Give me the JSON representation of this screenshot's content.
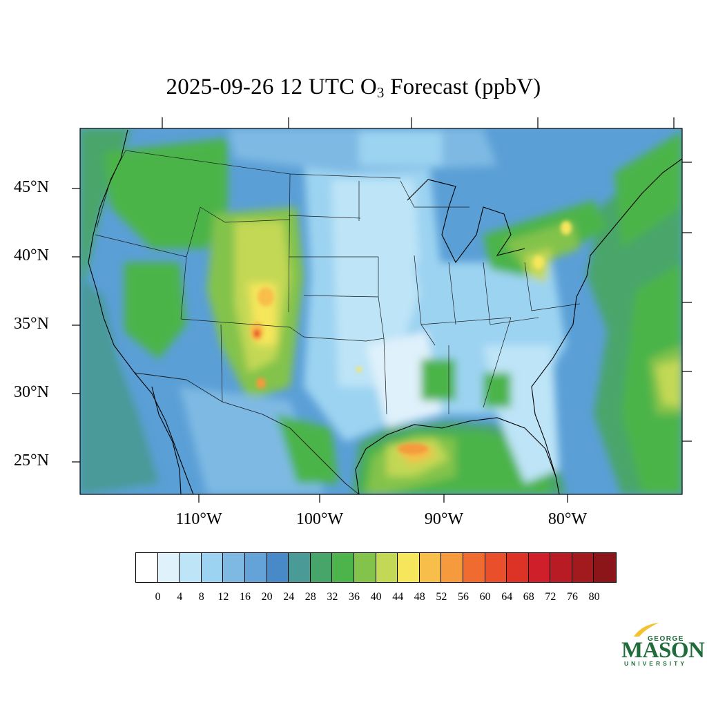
{
  "title": {
    "prefix": "2025-09-26 12 UTC O",
    "subscript": "3",
    "suffix": " Forecast (ppbV)"
  },
  "map": {
    "region": "Contiguous United States",
    "variable": "O3 forecast",
    "units": "ppbV",
    "lat_labels": [
      "45°N",
      "40°N",
      "35°N",
      "30°N",
      "25°N"
    ],
    "lon_labels": [
      "110°W",
      "100°W",
      "90°W",
      "80°W"
    ]
  },
  "colorbar": {
    "colors": [
      "#ffffff",
      "#dff1fb",
      "#bde4f7",
      "#9cd3f1",
      "#7eb9e3",
      "#64a3d7",
      "#4889c8",
      "#4a9a98",
      "#48a56a",
      "#4cb44a",
      "#83c34c",
      "#c3d854",
      "#f6e65c",
      "#f8be4a",
      "#f59a3d",
      "#f06b30",
      "#e94f2b",
      "#dd3327",
      "#cf1f2a",
      "#b91b24",
      "#a31a1e",
      "#8c1519"
    ],
    "tick_labels": [
      "0",
      "4",
      "8",
      "12",
      "16",
      "20",
      "24",
      "28",
      "32",
      "36",
      "40",
      "44",
      "48",
      "52",
      "56",
      "60",
      "64",
      "68",
      "72",
      "76",
      "80"
    ]
  },
  "logo": {
    "line1": "GEORGE",
    "line2": "MASON",
    "line3": "UNIVERSITY"
  }
}
